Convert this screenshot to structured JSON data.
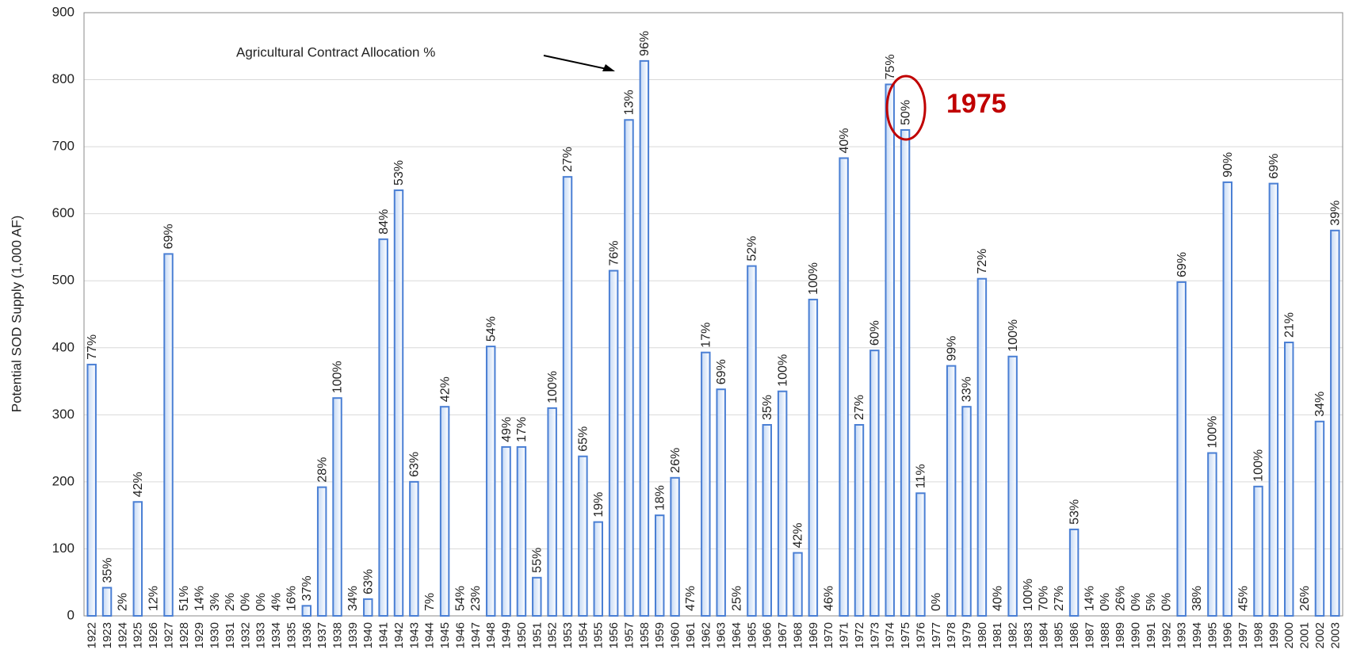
{
  "chart_data": {
    "type": "bar",
    "y_label": "Potential SOD Supply (1,000 AF)",
    "annotations": [
      "Agricultural Contract Allocation %",
      "1975"
    ],
    "categories": [
      "1922",
      "1923",
      "1924",
      "1925",
      "1926",
      "1927",
      "1928",
      "1929",
      "1930",
      "1931",
      "1932",
      "1933",
      "1934",
      "1935",
      "1936",
      "1937",
      "1938",
      "1939",
      "1940",
      "1941",
      "1942",
      "1943",
      "1944",
      "1945",
      "1946",
      "1947",
      "1948",
      "1949",
      "1950",
      "1951",
      "1952",
      "1953",
      "1954",
      "1955",
      "1956",
      "1957",
      "1958",
      "1959",
      "1960",
      "1961",
      "1962",
      "1963",
      "1964",
      "1965",
      "1966",
      "1967",
      "1968",
      "1969",
      "1970",
      "1971",
      "1972",
      "1973",
      "1974",
      "1975",
      "1976",
      "1977",
      "1978",
      "1979",
      "1980",
      "1981",
      "1982",
      "1983",
      "1984",
      "1985",
      "1986",
      "1987",
      "1988",
      "1989",
      "1990",
      "1991",
      "1992",
      "1993",
      "1994",
      "1995",
      "1996",
      "1997",
      "1998",
      "1999",
      "2000",
      "2001",
      "2002",
      "2003"
    ],
    "values": [
      375,
      42,
      0,
      170,
      0,
      540,
      0,
      0,
      0,
      0,
      0,
      0,
      0,
      0,
      15,
      192,
      325,
      0,
      25,
      562,
      635,
      200,
      0,
      312,
      0,
      0,
      402,
      252,
      252,
      57,
      310,
      655,
      238,
      140,
      515,
      740,
      828,
      150,
      206,
      0,
      393,
      338,
      0,
      522,
      285,
      335,
      94,
      472,
      0,
      683,
      285,
      396,
      793,
      725,
      183,
      0,
      373,
      312,
      503,
      0,
      387,
      0,
      0,
      0,
      129,
      0,
      0,
      0,
      0,
      0,
      0,
      498,
      0,
      243,
      647,
      0,
      193,
      645,
      408,
      0,
      290,
      575
    ],
    "allocation_labels": [
      "77%",
      "35%",
      "2%",
      "42%",
      "12%",
      "69%",
      "51%",
      "14%",
      "3%",
      "2%",
      "0%",
      "0%",
      "4%",
      "16%",
      "37%",
      "28%",
      "100%",
      "34%",
      "63%",
      "84%",
      "53%",
      "63%",
      "7%",
      "42%",
      "54%",
      "23%",
      "54%",
      "49%",
      "17%",
      "55%",
      "100%",
      "27%",
      "65%",
      "19%",
      "76%",
      "13%",
      "96%",
      "18%",
      "26%",
      "47%",
      "17%",
      "69%",
      "25%",
      "52%",
      "35%",
      "100%",
      "42%",
      "100%",
      "46%",
      "40%",
      "27%",
      "60%",
      "75%",
      "50%",
      "11%",
      "0%",
      "99%",
      "33%",
      "72%",
      "40%",
      "100%",
      "100%",
      "70%",
      "27%",
      "53%",
      "14%",
      "0%",
      "26%",
      "0%",
      "5%",
      "0%",
      "69%",
      "38%",
      "100%",
      "90%",
      "45%",
      "100%",
      "69%",
      "21%",
      "26%",
      "34%",
      "39%"
    ],
    "color": "#4a7fd4",
    "ylim": [
      0,
      900
    ],
    "yticks": [
      0,
      100,
      200,
      300,
      400,
      500,
      600,
      700,
      800,
      900
    ],
    "grid": true
  }
}
